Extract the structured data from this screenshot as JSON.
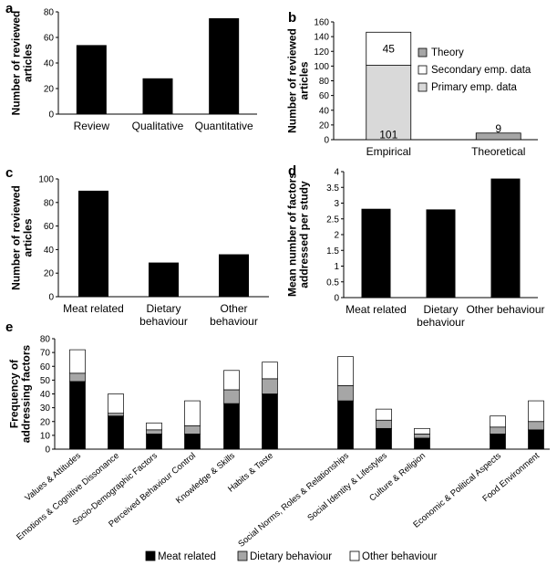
{
  "chart_data": [
    {
      "id": "a",
      "panel_label": "a",
      "type": "bar",
      "categories": [
        "Review",
        "Qualitative",
        "Quantitative"
      ],
      "values": [
        54,
        28,
        75
      ],
      "ylabel": "Number of reviewed articles",
      "ylim": [
        0,
        80
      ],
      "yticks": [
        0,
        20,
        40,
        60,
        80
      ],
      "grid": false
    },
    {
      "id": "b",
      "panel_label": "b",
      "type": "bar",
      "stacked": true,
      "categories": [
        "Empirical",
        "Theoretical"
      ],
      "series": [
        {
          "name": "Primary emp. data",
          "values": [
            101,
            0
          ],
          "color": "#d9d9d9"
        },
        {
          "name": "Secondary emp. data",
          "values": [
            45,
            0
          ],
          "color": "#ffffff"
        },
        {
          "name": "Theory",
          "values": [
            0,
            9
          ],
          "color": "#a6a6a6"
        }
      ],
      "data_labels": [
        "101",
        "45",
        "9"
      ],
      "legend_order": [
        "Theory",
        "Secondary emp. data",
        "Primary emp. data"
      ],
      "legend_position": "right",
      "ylabel": "Number of reviewed articles",
      "ylim": [
        0,
        160
      ],
      "yticks": [
        0,
        20,
        40,
        60,
        80,
        100,
        120,
        140,
        160
      ],
      "grid": false
    },
    {
      "id": "c",
      "panel_label": "c",
      "type": "bar",
      "categories": [
        "Meat related",
        "Dietary behaviour",
        "Other behaviour"
      ],
      "values": [
        90,
        29,
        36
      ],
      "ylabel": "Number of reviewed articles",
      "ylim": [
        0,
        100
      ],
      "yticks": [
        0,
        20,
        40,
        60,
        80,
        100
      ],
      "grid": false
    },
    {
      "id": "d",
      "panel_label": "d",
      "type": "bar",
      "categories": [
        "Meat related",
        "Dietary behaviour",
        "Other behaviour"
      ],
      "values": [
        2.82,
        2.8,
        3.78
      ],
      "ylabel": "Mean number of factors addressed per study",
      "ylim": [
        0,
        4
      ],
      "yticks": [
        0,
        0.5,
        1,
        1.5,
        2,
        2.5,
        3,
        3.5,
        4
      ],
      "grid": false
    },
    {
      "id": "e",
      "panel_label": "e",
      "type": "bar",
      "stacked": true,
      "categories": [
        "Values & Attitudes",
        "Emotions & Cognitive Dissonance",
        "Socio-Demographic Factors",
        "Perceived Behaviour Control",
        "Knowledge & Skills",
        "Habits & Taste",
        "Social Norms, Roles & Relationships",
        "Social Identity & Lifestyles",
        "Culture & Religion",
        "Economic & Political Aspects",
        "Food Environment"
      ],
      "series": [
        {
          "name": "Meat related",
          "values": [
            49,
            24,
            11,
            11,
            33,
            40,
            35,
            15,
            8,
            11,
            14
          ],
          "color": "#000000"
        },
        {
          "name": "Dietary behaviour",
          "values": [
            6,
            2,
            3,
            6,
            10,
            11,
            11,
            6,
            3,
            5,
            6
          ],
          "color": "#a6a6a6"
        },
        {
          "name": "Other behaviour",
          "values": [
            17,
            14,
            5,
            18,
            14,
            12,
            21,
            8,
            4,
            8,
            15
          ],
          "color": "#ffffff"
        }
      ],
      "ylabel": "Frequency of addressing factors",
      "ylim": [
        0,
        80
      ],
      "yticks": [
        0,
        10,
        20,
        30,
        40,
        50,
        60,
        70,
        80
      ],
      "legend_position": "bottom",
      "grid": false
    }
  ]
}
